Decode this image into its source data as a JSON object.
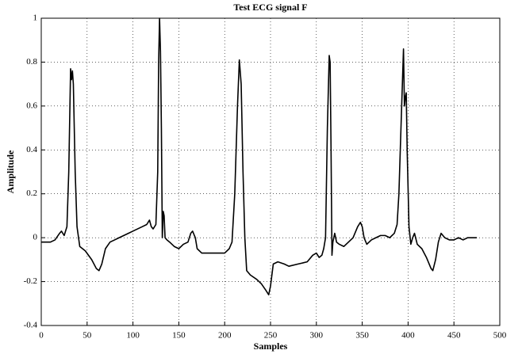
{
  "chart_data": {
    "type": "line",
    "title": "Test ECG signal F",
    "x_label": "Samples",
    "y_label": "Amplitude",
    "x": [
      0,
      10,
      15,
      20,
      22,
      25,
      28,
      30,
      32,
      33,
      34,
      35,
      37,
      39,
      42,
      48,
      55,
      60,
      63,
      66,
      70,
      75,
      80,
      85,
      90,
      95,
      100,
      105,
      110,
      115,
      118,
      120,
      122,
      125,
      127,
      128,
      129,
      130,
      131,
      132,
      133,
      134,
      135,
      137,
      140,
      145,
      150,
      155,
      160,
      163,
      165,
      168,
      170,
      175,
      180,
      190,
      200,
      205,
      208,
      211,
      214,
      216,
      218,
      220,
      222,
      224,
      228,
      235,
      240,
      245,
      248,
      250,
      253,
      258,
      265,
      270,
      280,
      290,
      296,
      300,
      303,
      306,
      308,
      310,
      312,
      314,
      315,
      316,
      317,
      318,
      320,
      322,
      325,
      330,
      335,
      340,
      345,
      348,
      350,
      352,
      355,
      360,
      365,
      370,
      375,
      380,
      385,
      388,
      390,
      393,
      395,
      396,
      397,
      398,
      399,
      401,
      403,
      405,
      407,
      410,
      415,
      420,
      425,
      427,
      430,
      433,
      436,
      440,
      445,
      450,
      455,
      460,
      465,
      470,
      475
    ],
    "series": [
      {
        "name": "ECG",
        "color": "#000000",
        "values": [
          -0.02,
          -0.02,
          -0.01,
          0.02,
          0.03,
          0.01,
          0.05,
          0.3,
          0.77,
          0.72,
          0.76,
          0.7,
          0.3,
          0.05,
          -0.04,
          -0.06,
          -0.1,
          -0.14,
          -0.15,
          -0.12,
          -0.05,
          -0.02,
          -0.01,
          0.0,
          0.01,
          0.02,
          0.03,
          0.04,
          0.05,
          0.06,
          0.08,
          0.05,
          0.04,
          0.06,
          0.3,
          0.8,
          1.0,
          0.85,
          0.5,
          0.0,
          0.12,
          0.1,
          0.0,
          -0.01,
          -0.02,
          -0.04,
          -0.05,
          -0.03,
          -0.02,
          0.02,
          0.03,
          0.0,
          -0.05,
          -0.07,
          -0.07,
          -0.07,
          -0.07,
          -0.05,
          -0.02,
          0.2,
          0.6,
          0.81,
          0.7,
          0.3,
          0.0,
          -0.15,
          -0.17,
          -0.19,
          -0.21,
          -0.24,
          -0.26,
          -0.22,
          -0.12,
          -0.11,
          -0.12,
          -0.13,
          -0.12,
          -0.11,
          -0.08,
          -0.07,
          -0.09,
          -0.08,
          -0.05,
          0.0,
          0.5,
          0.83,
          0.8,
          0.4,
          -0.08,
          -0.02,
          0.02,
          -0.02,
          -0.03,
          -0.04,
          -0.02,
          0.0,
          0.05,
          0.07,
          0.05,
          0.0,
          -0.03,
          -0.01,
          0.0,
          0.01,
          0.01,
          0.0,
          0.02,
          0.06,
          0.2,
          0.6,
          0.86,
          0.6,
          0.64,
          0.66,
          0.4,
          0.05,
          -0.03,
          0.0,
          0.02,
          -0.03,
          -0.05,
          -0.09,
          -0.14,
          -0.15,
          -0.1,
          -0.02,
          0.02,
          0.0,
          -0.01,
          -0.01,
          0.0,
          -0.01,
          0.0,
          0.0,
          0.0
        ]
      }
    ],
    "xlim": [
      0,
      500
    ],
    "xticks": [
      0,
      50,
      100,
      150,
      200,
      250,
      300,
      350,
      400,
      450,
      500
    ],
    "ylim": [
      -0.4,
      1
    ],
    "yticks": [
      -0.4,
      -0.2,
      0,
      0.2,
      0.4,
      0.6,
      0.8,
      1
    ],
    "grid": true
  }
}
